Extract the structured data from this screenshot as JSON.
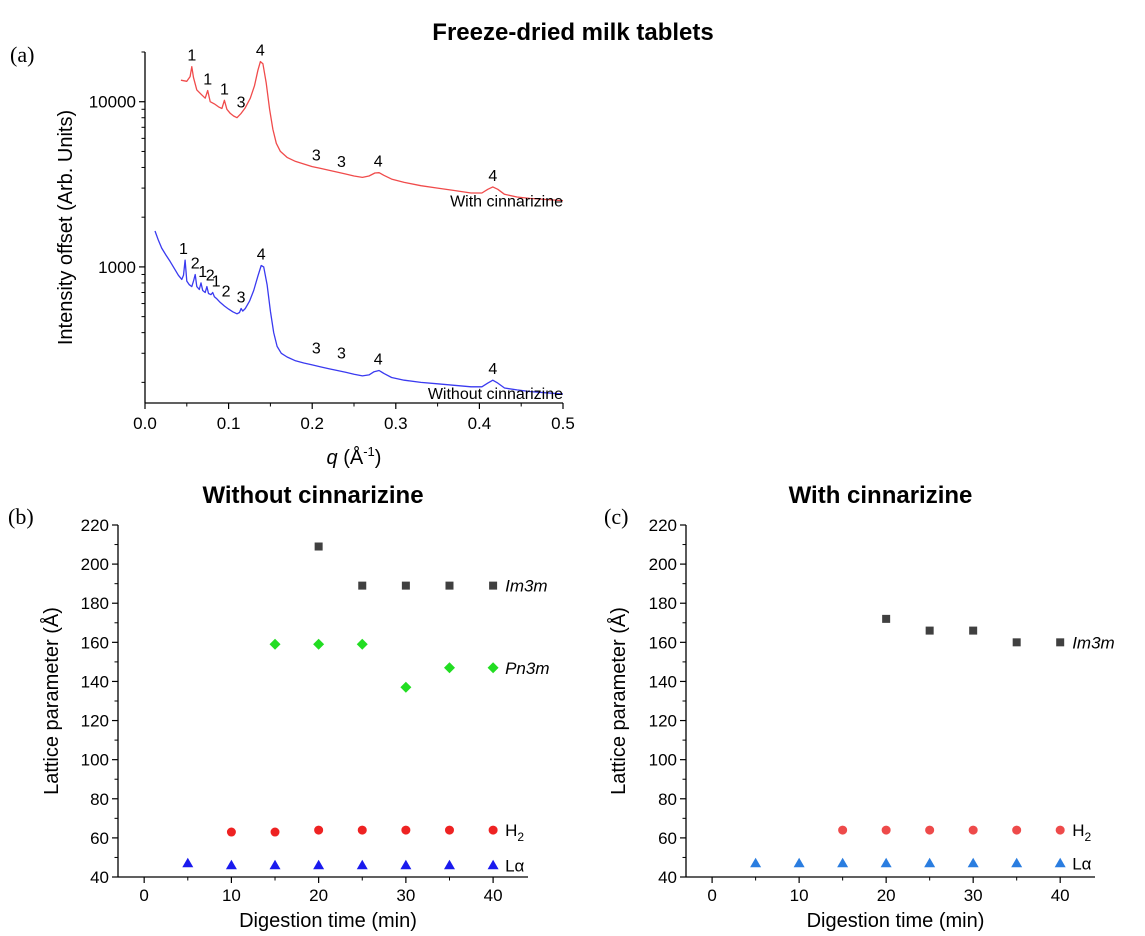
{
  "figure_title": "Freeze-dried milk tablets",
  "chart_data": [
    {
      "panel": "(a)",
      "type": "line",
      "title": "",
      "xlabel_italic": "q",
      "xlabel_unit": "(Å",
      "xlabel_sup": "-1",
      "xlabel_close": ")",
      "ylabel": "Intensity offset (Arb. Units)",
      "xlim": [
        0.0,
        0.5
      ],
      "ylim": [
        150,
        20000
      ],
      "yscale": "log",
      "xticks": [
        "0.0",
        "0.1",
        "0.2",
        "0.3",
        "0.4",
        "0.5"
      ],
      "yticks": [
        {
          "value": 1000,
          "label": "1000"
        },
        {
          "value": 10000,
          "label": "10000"
        }
      ],
      "series": [
        {
          "name": "With cinnarizine",
          "color": "#f04b4b",
          "points": [
            [
              0.043,
              13500
            ],
            [
              0.05,
              13300
            ],
            [
              0.054,
              14200
            ],
            [
              0.056,
              16300
            ],
            [
              0.058,
              14000
            ],
            [
              0.062,
              11800
            ],
            [
              0.068,
              11000
            ],
            [
              0.072,
              10500
            ],
            [
              0.075,
              11700
            ],
            [
              0.078,
              10000
            ],
            [
              0.083,
              9700
            ],
            [
              0.088,
              9300
            ],
            [
              0.092,
              9100
            ],
            [
              0.095,
              10200
            ],
            [
              0.098,
              9000
            ],
            [
              0.102,
              8500
            ],
            [
              0.106,
              8200
            ],
            [
              0.11,
              8000
            ],
            [
              0.115,
              8500
            ],
            [
              0.12,
              9200
            ],
            [
              0.126,
              10500
            ],
            [
              0.131,
              12500
            ],
            [
              0.135,
              15500
            ],
            [
              0.138,
              17500
            ],
            [
              0.141,
              17000
            ],
            [
              0.145,
              13000
            ],
            [
              0.149,
              9000
            ],
            [
              0.153,
              6800
            ],
            [
              0.157,
              5600
            ],
            [
              0.162,
              5000
            ],
            [
              0.17,
              4600
            ],
            [
              0.18,
              4350
            ],
            [
              0.19,
              4200
            ],
            [
              0.2,
              4050
            ],
            [
              0.21,
              3950
            ],
            [
              0.22,
              3850
            ],
            [
              0.23,
              3750
            ],
            [
              0.24,
              3650
            ],
            [
              0.25,
              3550
            ],
            [
              0.26,
              3480
            ],
            [
              0.268,
              3550
            ],
            [
              0.275,
              3700
            ],
            [
              0.28,
              3720
            ],
            [
              0.286,
              3580
            ],
            [
              0.295,
              3400
            ],
            [
              0.31,
              3250
            ],
            [
              0.33,
              3100
            ],
            [
              0.35,
              3000
            ],
            [
              0.37,
              2900
            ],
            [
              0.39,
              2800
            ],
            [
              0.403,
              2800
            ],
            [
              0.41,
              2950
            ],
            [
              0.416,
              3050
            ],
            [
              0.422,
              2950
            ],
            [
              0.43,
              2750
            ],
            [
              0.445,
              2650
            ],
            [
              0.46,
              2600
            ],
            [
              0.48,
              2560
            ],
            [
              0.5,
              2520
            ]
          ]
        },
        {
          "name": "Without cinnarizine",
          "color": "#3a3af0",
          "points": [
            [
              0.012,
              1650
            ],
            [
              0.016,
              1450
            ],
            [
              0.02,
              1300
            ],
            [
              0.025,
              1180
            ],
            [
              0.03,
              1080
            ],
            [
              0.035,
              980
            ],
            [
              0.04,
              890
            ],
            [
              0.044,
              840
            ],
            [
              0.046,
              890
            ],
            [
              0.048,
              1100
            ],
            [
              0.05,
              820
            ],
            [
              0.053,
              780
            ],
            [
              0.056,
              760
            ],
            [
              0.058,
              820
            ],
            [
              0.06,
              900
            ],
            [
              0.062,
              760
            ],
            [
              0.065,
              730
            ],
            [
              0.067,
              800
            ],
            [
              0.069,
              720
            ],
            [
              0.072,
              700
            ],
            [
              0.074,
              760
            ],
            [
              0.076,
              690
            ],
            [
              0.079,
              680
            ],
            [
              0.081,
              700
            ],
            [
              0.083,
              660
            ],
            [
              0.086,
              640
            ],
            [
              0.09,
              610
            ],
            [
              0.095,
              580
            ],
            [
              0.1,
              555
            ],
            [
              0.105,
              535
            ],
            [
              0.11,
              520
            ],
            [
              0.113,
              530
            ],
            [
              0.115,
              560
            ],
            [
              0.117,
              540
            ],
            [
              0.12,
              560
            ],
            [
              0.125,
              620
            ],
            [
              0.13,
              720
            ],
            [
              0.135,
              880
            ],
            [
              0.139,
              1020
            ],
            [
              0.142,
              1000
            ],
            [
              0.146,
              780
            ],
            [
              0.15,
              540
            ],
            [
              0.154,
              400
            ],
            [
              0.158,
              330
            ],
            [
              0.163,
              300
            ],
            [
              0.17,
              285
            ],
            [
              0.18,
              270
            ],
            [
              0.19,
              262
            ],
            [
              0.2,
              255
            ],
            [
              0.21,
              248
            ],
            [
              0.22,
              242
            ],
            [
              0.23,
              236
            ],
            [
              0.24,
              230
            ],
            [
              0.25,
              224
            ],
            [
              0.26,
              219
            ],
            [
              0.268,
              222
            ],
            [
              0.274,
              232
            ],
            [
              0.28,
              236
            ],
            [
              0.286,
              226
            ],
            [
              0.295,
              214
            ],
            [
              0.31,
              206
            ],
            [
              0.33,
              200
            ],
            [
              0.35,
              196
            ],
            [
              0.37,
              192
            ],
            [
              0.39,
              188
            ],
            [
              0.403,
              188
            ],
            [
              0.41,
              198
            ],
            [
              0.416,
              206
            ],
            [
              0.422,
              198
            ],
            [
              0.43,
              185
            ],
            [
              0.445,
              180
            ],
            [
              0.46,
              176
            ],
            [
              0.48,
              173
            ],
            [
              0.5,
              170
            ]
          ]
        }
      ],
      "peak_labels": [
        {
          "text": "1",
          "x": 0.056,
          "y": 16300
        },
        {
          "text": "1",
          "x": 0.075,
          "y": 11700
        },
        {
          "text": "1",
          "x": 0.095,
          "y": 10200
        },
        {
          "text": "3",
          "x": 0.115,
          "y": 8500
        },
        {
          "text": "4",
          "x": 0.138,
          "y": 17500
        },
        {
          "text": "3",
          "x": 0.205,
          "y": 4050
        },
        {
          "text": "3",
          "x": 0.235,
          "y": 3700
        },
        {
          "text": "4",
          "x": 0.279,
          "y": 3720
        },
        {
          "text": "4",
          "x": 0.416,
          "y": 3050
        },
        {
          "text": "1",
          "x": 0.046,
          "y": 1100
        },
        {
          "text": "2",
          "x": 0.06,
          "y": 900
        },
        {
          "text": "1",
          "x": 0.069,
          "y": 800
        },
        {
          "text": "2",
          "x": 0.078,
          "y": 760
        },
        {
          "text": "1",
          "x": 0.085,
          "y": 700
        },
        {
          "text": "2",
          "x": 0.097,
          "y": 610
        },
        {
          "text": "3",
          "x": 0.115,
          "y": 560
        },
        {
          "text": "4",
          "x": 0.139,
          "y": 1020
        },
        {
          "text": "3",
          "x": 0.205,
          "y": 275
        },
        {
          "text": "3",
          "x": 0.235,
          "y": 256
        },
        {
          "text": "4",
          "x": 0.279,
          "y": 236
        },
        {
          "text": "4",
          "x": 0.416,
          "y": 206
        }
      ],
      "curve_labels": [
        {
          "text": "With cinnarizine",
          "x": 0.5,
          "y": 2200
        },
        {
          "text": "Without cinnarizine",
          "x": 0.5,
          "y": 150
        }
      ]
    },
    {
      "panel": "(b)",
      "type": "scatter",
      "title": "Without cinnarizine",
      "xlabel": "Digestion time (min)",
      "ylabel": "Lattice parameter (Å)",
      "xlim": [
        -3,
        44
      ],
      "ylim": [
        40,
        220
      ],
      "xticks": [
        0,
        10,
        20,
        30,
        40
      ],
      "yticks": [
        40,
        60,
        80,
        100,
        120,
        140,
        160,
        180,
        200,
        220
      ],
      "series": [
        {
          "name": "Im3m",
          "marker": "square",
          "color": "#404040",
          "x": [
            20,
            25,
            30,
            35,
            40
          ],
          "y": [
            209,
            189,
            189,
            189,
            189
          ]
        },
        {
          "name": "Pn3m",
          "marker": "diamond",
          "color": "#22dd22",
          "x": [
            15,
            20,
            25,
            30,
            35,
            40
          ],
          "y": [
            159,
            159,
            159,
            137,
            147,
            147
          ]
        },
        {
          "name": "H",
          "name_sub": "2",
          "marker": "circle",
          "color": "#ee2222",
          "x": [
            10,
            15,
            20,
            25,
            30,
            35,
            40
          ],
          "y": [
            63,
            63,
            64,
            64,
            64,
            64,
            64
          ]
        },
        {
          "name": "Lα",
          "marker": "triangle",
          "color": "#1a1aee",
          "x": [
            5,
            10,
            15,
            20,
            25,
            30,
            35,
            40
          ],
          "y": [
            47,
            46,
            46,
            46,
            46,
            46,
            46,
            46
          ]
        }
      ]
    },
    {
      "panel": "(c)",
      "type": "scatter",
      "title": "With cinnarizine",
      "xlabel": "Digestion time (min)",
      "ylabel": "Lattice parameter (Å)",
      "xlim": [
        -3,
        44
      ],
      "ylim": [
        40,
        220
      ],
      "xticks": [
        0,
        10,
        20,
        30,
        40
      ],
      "yticks": [
        40,
        60,
        80,
        100,
        120,
        140,
        160,
        180,
        200,
        220
      ],
      "series": [
        {
          "name": "Im3m",
          "marker": "square",
          "color": "#404040",
          "x": [
            20,
            25,
            30,
            35,
            40
          ],
          "y": [
            172,
            166,
            166,
            160,
            160
          ]
        },
        {
          "name": "H",
          "name_sub": "2",
          "marker": "circle",
          "color": "#ee4a4a",
          "x": [
            15,
            20,
            25,
            30,
            35,
            40
          ],
          "y": [
            64,
            64,
            64,
            64,
            64,
            64
          ]
        },
        {
          "name": "Lα",
          "marker": "triangle",
          "color": "#2a7de0",
          "x": [
            5,
            10,
            15,
            20,
            25,
            30,
            35,
            40
          ],
          "y": [
            47,
            47,
            47,
            47,
            47,
            47,
            47,
            47
          ]
        }
      ]
    }
  ]
}
